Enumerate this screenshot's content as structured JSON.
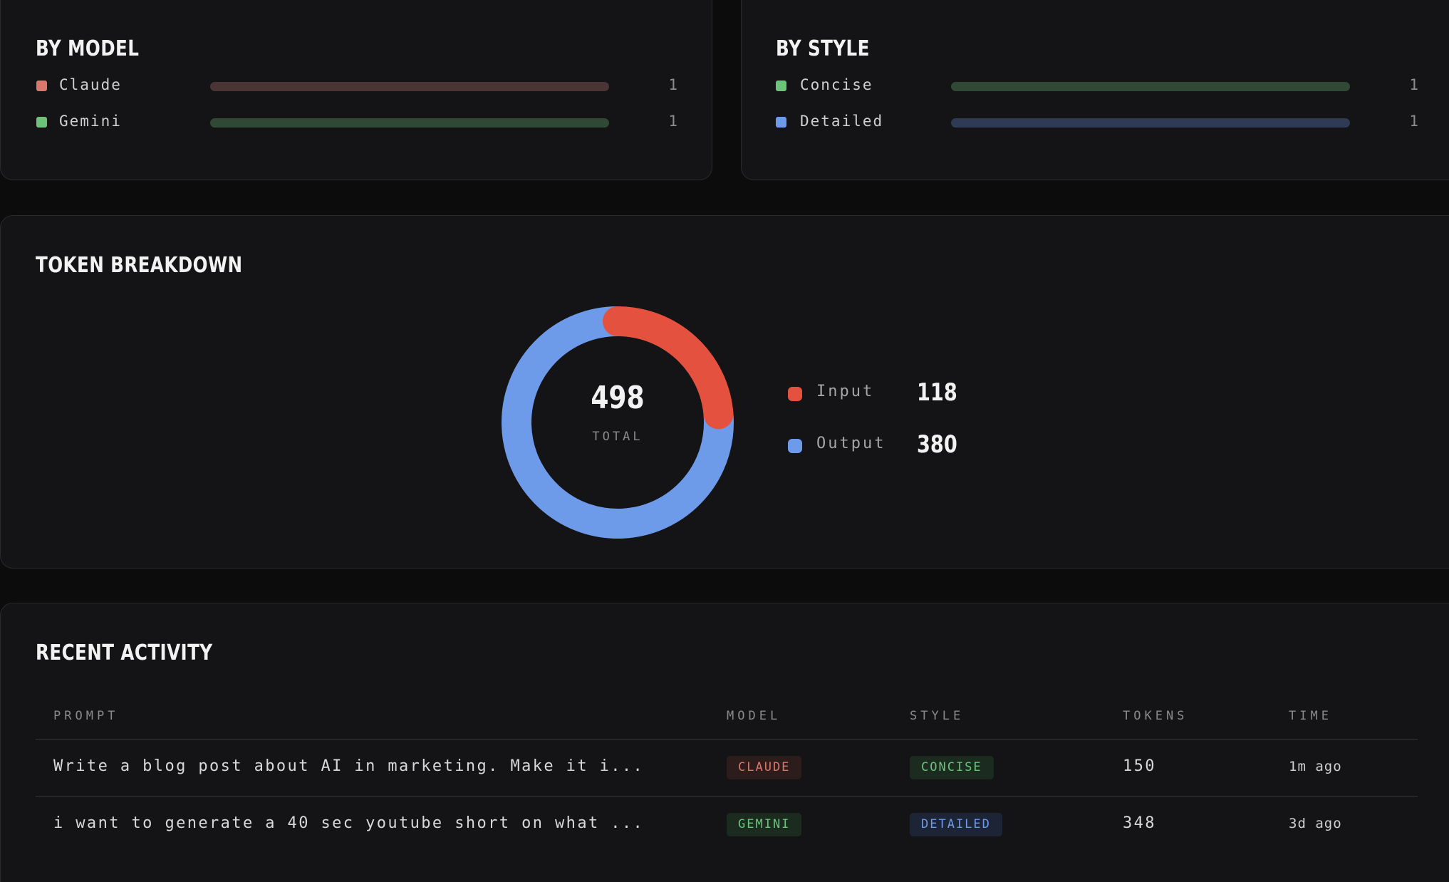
{
  "by_model": {
    "title": "BY MODEL",
    "items": [
      {
        "label": "Claude",
        "count": "1",
        "value": 1,
        "max": 1,
        "dot_color": "#d9776a",
        "bar_color": "#4a3534"
      },
      {
        "label": "Gemini",
        "count": "1",
        "value": 1,
        "max": 1,
        "dot_color": "#6cc479",
        "bar_color": "#2f4935"
      }
    ]
  },
  "by_style": {
    "title": "BY STYLE",
    "items": [
      {
        "label": "Concise",
        "count": "1",
        "value": 1,
        "max": 1,
        "dot_color": "#6cc479",
        "bar_color": "#2f4935"
      },
      {
        "label": "Detailed",
        "count": "1",
        "value": 1,
        "max": 1,
        "dot_color": "#6d9bea",
        "bar_color": "#2f3a54"
      }
    ]
  },
  "token_breakdown": {
    "title": "TOKEN BREAKDOWN",
    "total": "498",
    "total_caption": "TOTAL",
    "legend": [
      {
        "label": "Input",
        "value": "118",
        "color": "#e5513f"
      },
      {
        "label": "Output",
        "value": "380",
        "color": "#6d9bea"
      }
    ]
  },
  "chart_data": {
    "type": "pie",
    "categories": [
      "Input",
      "Output"
    ],
    "values": [
      118,
      380
    ],
    "colors": [
      "#e5513f",
      "#6d9bea"
    ]
  },
  "recent_activity": {
    "title": "RECENT ACTIVITY",
    "columns": [
      "PROMPT",
      "MODEL",
      "STYLE",
      "TOKENS",
      "TIME"
    ],
    "rows": [
      {
        "prompt": "Write a blog post about AI in marketing. Make it i...",
        "model": "CLAUDE",
        "style": "CONCISE",
        "tokens": "150",
        "time": "1m ago"
      },
      {
        "prompt": "i want to generate a 40 sec youtube short on what ...",
        "model": "GEMINI",
        "style": "DETAILED",
        "tokens": "348",
        "time": "3d ago"
      }
    ]
  },
  "badge_colors": {
    "CLAUDE": {
      "fg": "#d9776a",
      "bg": "#2c1d1c"
    },
    "GEMINI": {
      "fg": "#6cc479",
      "bg": "#1b2b20"
    },
    "CONCISE": {
      "fg": "#6cc479",
      "bg": "#1b2b20"
    },
    "DETAILED": {
      "fg": "#6d9bea",
      "bg": "#1c2436"
    }
  }
}
